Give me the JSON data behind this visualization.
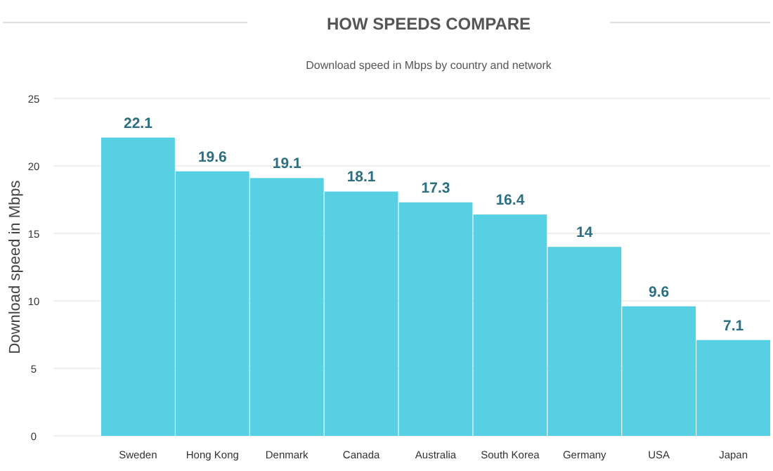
{
  "chart_data": {
    "type": "bar",
    "title": "HOW SPEEDS COMPARE",
    "subtitle": "Download speed in Mbps by country and network",
    "ylabel": "Download speed in Mbps",
    "categories": [
      "Sweden",
      "Hong Kong",
      "Denmark",
      "Canada",
      "Australia",
      "South Korea",
      "Germany",
      "USA",
      "Japan"
    ],
    "values": [
      22.1,
      19.6,
      19.1,
      18.1,
      17.3,
      16.4,
      14,
      9.6,
      7.1
    ],
    "color": "#58d0e3",
    "ylim": [
      0,
      25
    ],
    "yticks": [
      0,
      5,
      10,
      15,
      20,
      25
    ],
    "grid": "y",
    "data_labels": true
  }
}
